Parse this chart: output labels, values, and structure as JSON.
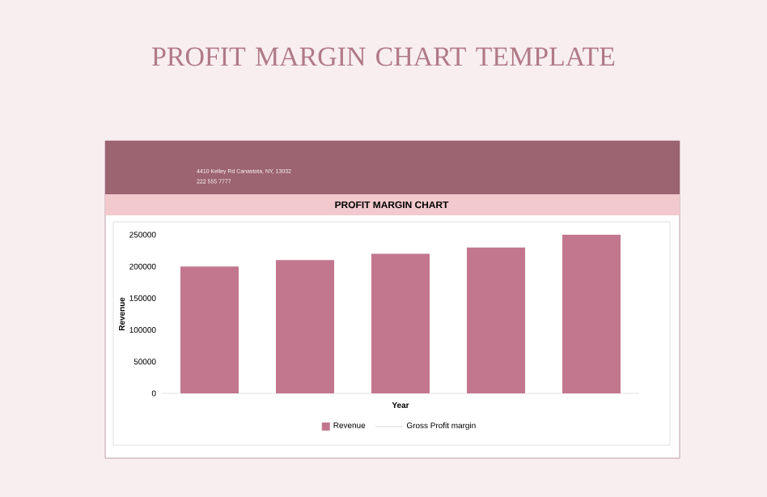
{
  "chart_data": {
    "type": "bar",
    "title": "PROFIT MARGIN CHART TEMPLATE",
    "subtitle": "PROFIT MARGIN CHART",
    "annotations": [
      "4410 Kelley Rd Canastota, NY, 13032",
      "222 555 7777"
    ],
    "xlabel": "Year",
    "ylabel": "Revenue",
    "categories": [
      null,
      null,
      null,
      null,
      null
    ],
    "series": [
      {
        "name": "Revenue",
        "color": "#c2778f",
        "values": [
          200000,
          210000,
          220000,
          230000,
          250000
        ]
      },
      {
        "name": "Gross Profit margin",
        "type": "line",
        "color": "#cccccc",
        "values": [
          null,
          null,
          null,
          null,
          null
        ]
      }
    ],
    "ylim": [
      0,
      250000
    ],
    "yticks": [
      0,
      50000,
      100000,
      150000,
      200000,
      250000
    ],
    "grid": false,
    "legend": "bottom"
  }
}
